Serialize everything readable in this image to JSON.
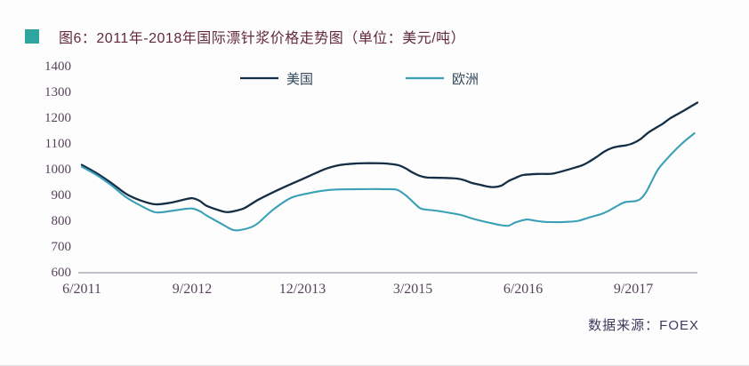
{
  "header": {
    "title": "图6：2011年-2018年国际漂针浆价格走势图（单位：美元/吨）"
  },
  "footer": {
    "source": "数据来源：FOEX"
  },
  "colors": {
    "title_square": "#2fa5a0",
    "title_text": "#62293b",
    "tick_label": "#564459",
    "axis_line": "#9aa0ab",
    "source_text": "#3e3a60",
    "legend_text": "#33475a",
    "us_line": "#142e45",
    "eu_line": "#3aa0b6"
  },
  "chart_data": {
    "type": "line",
    "title": "2011年-2018年国际漂针浆价格走势图",
    "unit": "美元/吨",
    "grid": false,
    "legend_position": "top-center",
    "x_axis": {
      "month_zero": "6/2011",
      "tick_months": [
        0,
        15,
        30,
        45,
        60,
        75
      ],
      "tick_labels": [
        "6/2011",
        "9/2012",
        "12/2013",
        "3/2015",
        "6/2016",
        "9/2017"
      ],
      "month_span": 83.7
    },
    "y_axis": {
      "min": 600,
      "max": 1400,
      "step": 100,
      "ticks": [
        1400,
        1300,
        1200,
        1100,
        1000,
        900,
        800,
        700,
        600
      ]
    },
    "series": [
      {
        "name": "美国",
        "color": "#142e45",
        "points": [
          [
            0,
            1015
          ],
          [
            2,
            983
          ],
          [
            4,
            945
          ],
          [
            6,
            903
          ],
          [
            8,
            877
          ],
          [
            10,
            862
          ],
          [
            12,
            868
          ],
          [
            14,
            881
          ],
          [
            15,
            886
          ],
          [
            16,
            876
          ],
          [
            17,
            856
          ],
          [
            19,
            836
          ],
          [
            20,
            832
          ],
          [
            22,
            846
          ],
          [
            24,
            880
          ],
          [
            27,
            922
          ],
          [
            30,
            960
          ],
          [
            33,
            998
          ],
          [
            35,
            1014
          ],
          [
            37,
            1020
          ],
          [
            39,
            1022
          ],
          [
            41,
            1021
          ],
          [
            43,
            1014
          ],
          [
            44,
            1002
          ],
          [
            45,
            985
          ],
          [
            46,
            972
          ],
          [
            47,
            966
          ],
          [
            49,
            965
          ],
          [
            51,
            962
          ],
          [
            52,
            956
          ],
          [
            53,
            945
          ],
          [
            54,
            939
          ],
          [
            55,
            932
          ],
          [
            56,
            929
          ],
          [
            57,
            934
          ],
          [
            58,
            952
          ],
          [
            59,
            965
          ],
          [
            60,
            976
          ],
          [
            62,
            980
          ],
          [
            64,
            981
          ],
          [
            66,
            996
          ],
          [
            68,
            1013
          ],
          [
            69,
            1028
          ],
          [
            70,
            1046
          ],
          [
            71,
            1066
          ],
          [
            72,
            1080
          ],
          [
            73,
            1087
          ],
          [
            74,
            1091
          ],
          [
            75,
            1100
          ],
          [
            76,
            1116
          ],
          [
            77,
            1140
          ],
          [
            78,
            1158
          ],
          [
            79,
            1175
          ],
          [
            80,
            1196
          ],
          [
            81,
            1212
          ],
          [
            82,
            1228
          ],
          [
            83,
            1245
          ],
          [
            83.7,
            1257
          ]
        ]
      },
      {
        "name": "欧洲",
        "color": "#3aa0b6",
        "points": [
          [
            0,
            1008
          ],
          [
            2,
            976
          ],
          [
            4,
            936
          ],
          [
            6,
            890
          ],
          [
            8,
            857
          ],
          [
            10,
            831
          ],
          [
            12,
            836
          ],
          [
            14,
            844
          ],
          [
            15,
            846
          ],
          [
            16,
            836
          ],
          [
            17,
            818
          ],
          [
            19,
            786
          ],
          [
            20.5,
            763
          ],
          [
            21.5,
            762
          ],
          [
            23,
            773
          ],
          [
            24,
            790
          ],
          [
            26,
            841
          ],
          [
            28.5,
            888
          ],
          [
            31,
            906
          ],
          [
            33,
            916
          ],
          [
            35,
            920
          ],
          [
            38,
            921
          ],
          [
            41,
            921
          ],
          [
            42.8,
            919
          ],
          [
            44,
            898
          ],
          [
            45,
            872
          ],
          [
            46,
            847
          ],
          [
            47,
            841
          ],
          [
            48,
            838
          ],
          [
            50,
            829
          ],
          [
            51.5,
            821
          ],
          [
            53,
            808
          ],
          [
            54,
            800
          ],
          [
            55.5,
            790
          ],
          [
            57,
            781
          ],
          [
            58,
            779
          ],
          [
            59,
            792
          ],
          [
            60.5,
            803
          ],
          [
            61.5,
            799
          ],
          [
            62.5,
            795
          ],
          [
            64,
            793
          ],
          [
            66,
            794
          ],
          [
            67.5,
            798
          ],
          [
            69,
            811
          ],
          [
            70.5,
            823
          ],
          [
            71.5,
            835
          ],
          [
            72.5,
            851
          ],
          [
            73.5,
            867
          ],
          [
            74.2,
            872
          ],
          [
            75.3,
            875
          ],
          [
            76,
            884
          ],
          [
            76.8,
            913
          ],
          [
            77.6,
            958
          ],
          [
            78.4,
            1000
          ],
          [
            79.6,
            1040
          ],
          [
            80.8,
            1076
          ],
          [
            82,
            1108
          ],
          [
            83.3,
            1138
          ]
        ]
      }
    ]
  }
}
